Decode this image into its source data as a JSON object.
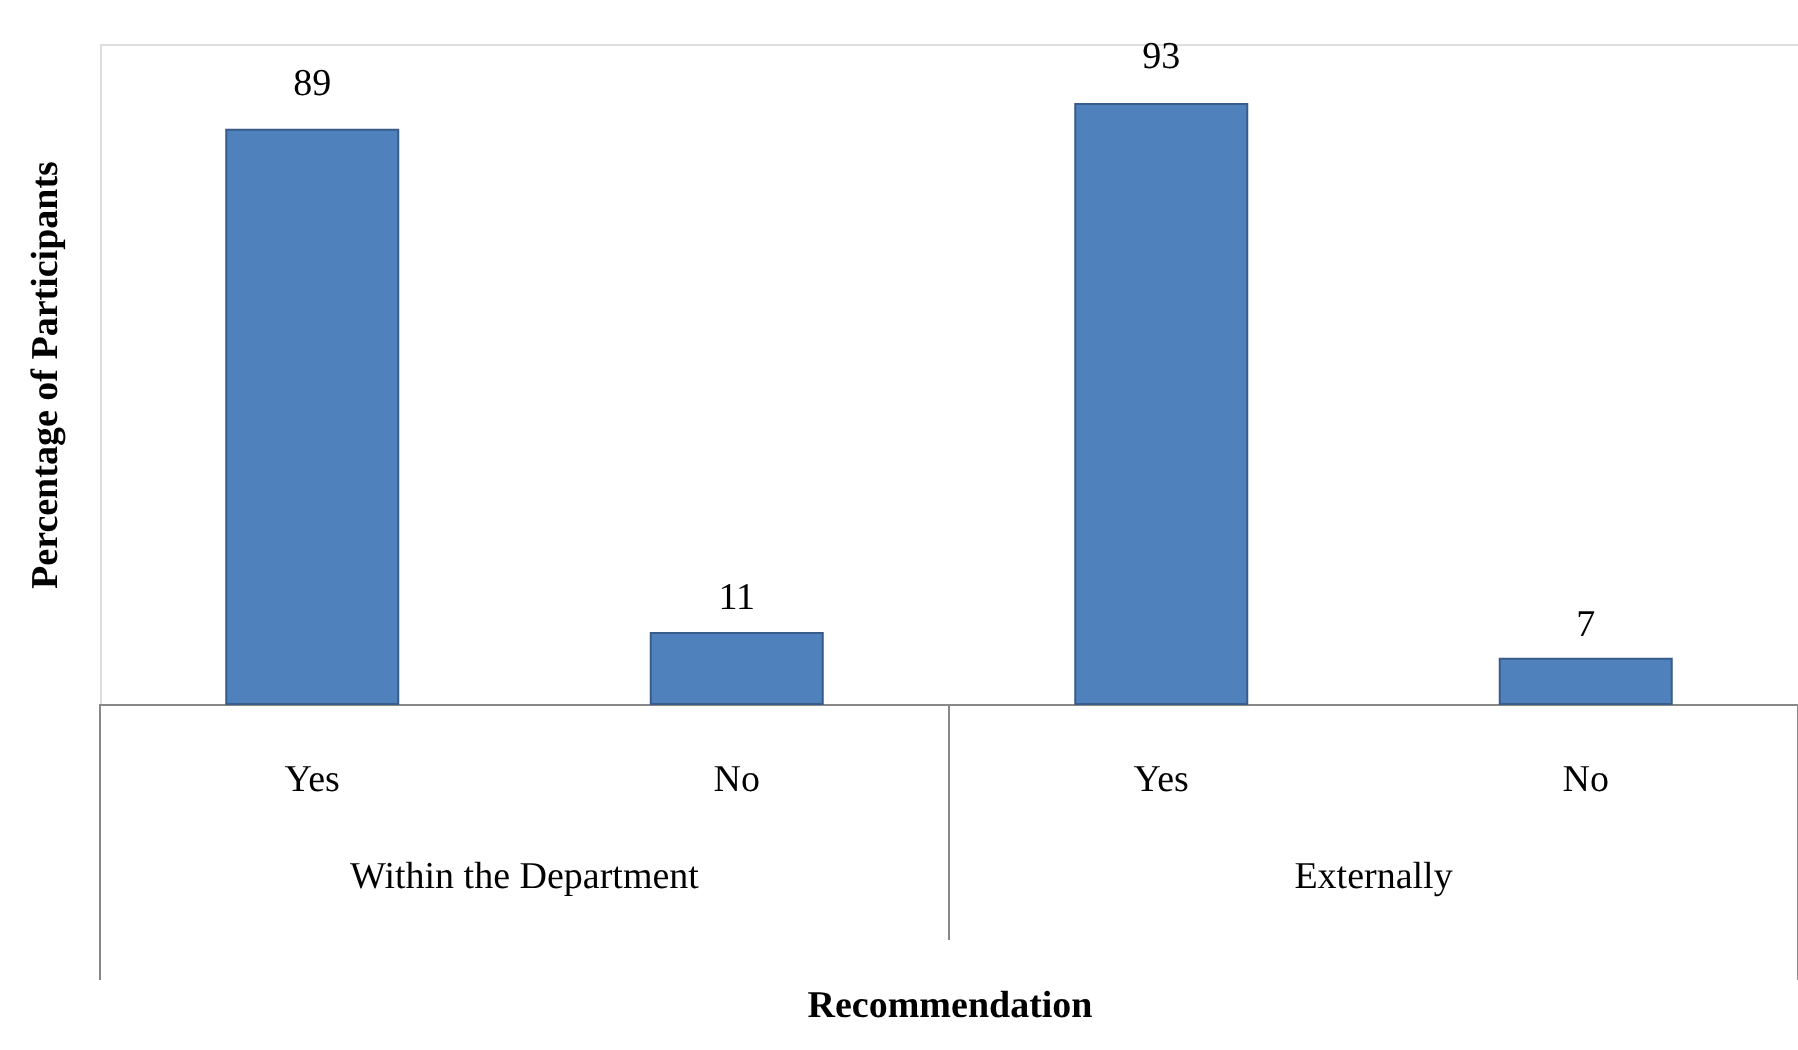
{
  "chart_data": {
    "type": "bar",
    "xlabel": "Recommendation",
    "ylabel": "Percentage of Participants",
    "categories": [
      "Yes",
      "No",
      "Yes",
      "No"
    ],
    "values": [
      89,
      11,
      93,
      7
    ],
    "color": "#4f81bd",
    "data_labels": true,
    "grid": false,
    "annotations": [
      "Within the Department",
      "Externally"
    ]
  }
}
